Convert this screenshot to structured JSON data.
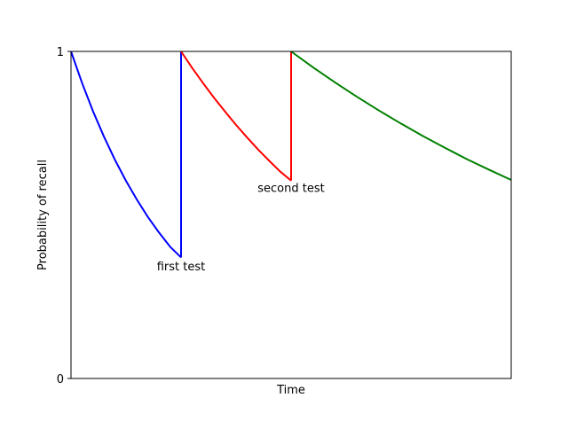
{
  "chart_data": {
    "type": "line",
    "xlabel": "Time",
    "ylabel": "Probability of recall",
    "xlim": [
      0,
      4
    ],
    "ylim": [
      0,
      1
    ],
    "x_ticks_shown": false,
    "yticks": [
      {
        "value": 0,
        "label": "0"
      },
      {
        "value": 1,
        "label": "1"
      }
    ],
    "grid": false,
    "series": [
      {
        "color": "#0000ff",
        "x": [
          0,
          0.1,
          0.2,
          0.3,
          0.4,
          0.5,
          0.6,
          0.7,
          0.8,
          0.9,
          1.0
        ],
        "y": [
          1.0,
          0.904,
          0.817,
          0.739,
          0.668,
          0.604,
          0.546,
          0.493,
          0.446,
          0.403,
          0.37
        ]
      },
      {
        "color": "#0000ff",
        "x": [
          1.0,
          1.0
        ],
        "y": [
          0.37,
          1.0
        ]
      },
      {
        "color": "#ff0000",
        "x": [
          1.0,
          1.1,
          1.2,
          1.3,
          1.4,
          1.5,
          1.6,
          1.7,
          1.8,
          1.9,
          2.0
        ],
        "y": [
          1.0,
          0.95,
          0.903,
          0.858,
          0.816,
          0.775,
          0.737,
          0.7,
          0.666,
          0.633,
          0.605
        ]
      },
      {
        "color": "#ff0000",
        "x": [
          2.0,
          2.0
        ],
        "y": [
          0.605,
          1.0
        ]
      },
      {
        "color": "#008000",
        "x": [
          2.0,
          2.2,
          2.4,
          2.6,
          2.8,
          3.0,
          3.2,
          3.4,
          3.6,
          3.8,
          4.0
        ],
        "y": [
          1.0,
          0.951,
          0.905,
          0.861,
          0.819,
          0.779,
          0.741,
          0.705,
          0.67,
          0.638,
          0.607
        ]
      }
    ],
    "annotations": [
      {
        "text": "first test",
        "x": 1.0,
        "y": 0.33
      },
      {
        "text": "second test",
        "x": 2.0,
        "y": 0.57
      }
    ]
  }
}
